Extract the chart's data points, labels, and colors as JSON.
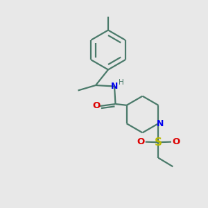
{
  "bg_color": "#e8e8e8",
  "bond_color": "#4a7a6a",
  "n_color": "#0000ee",
  "o_color": "#dd0000",
  "s_color": "#bbbb00",
  "lw": 1.6,
  "fig_size": [
    3.0,
    3.0
  ],
  "dpi": 100,
  "xlim": [
    0,
    10
  ],
  "ylim": [
    0,
    10
  ]
}
